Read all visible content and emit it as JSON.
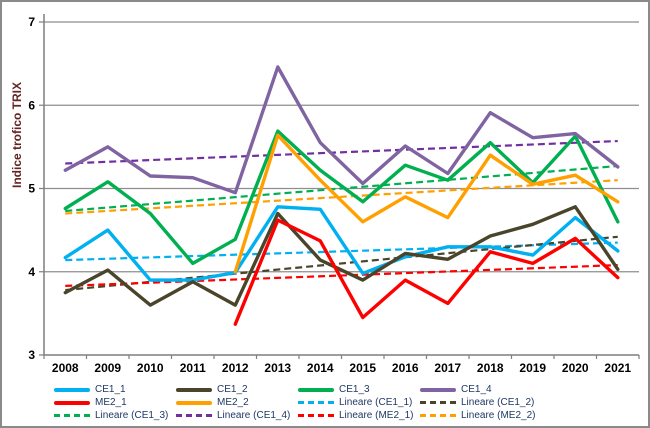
{
  "window": {
    "background": "#FFFFFF",
    "border_color": "#8a8a8a"
  },
  "axis_style": {
    "grid_color": "#8E8E8E",
    "axis_color": "#7F7F7F",
    "tick_label_color": "#000000",
    "y_title_color": "#632423",
    "legend_text_color": "#1F3864"
  },
  "chart_data": {
    "type": "line",
    "title": "",
    "xlabel": "",
    "ylabel": "Indice trofico TRIX",
    "ylim": [
      3,
      7
    ],
    "yticks": [
      3,
      4,
      5,
      6,
      7
    ],
    "grid": "horizontal",
    "legend_position": "bottom",
    "categories": [
      "2008",
      "2009",
      "2010",
      "2011",
      "2012",
      "2013",
      "2014",
      "2015",
      "2016",
      "2017",
      "2018",
      "2019",
      "2020",
      "2021"
    ],
    "series": [
      {
        "name": "CE1_1",
        "color": "#00B0F0",
        "style": "solid",
        "values": [
          4.17,
          4.5,
          3.9,
          3.9,
          3.99,
          4.78,
          4.75,
          3.98,
          4.18,
          4.3,
          4.3,
          4.2,
          4.65,
          4.25
        ]
      },
      {
        "name": "CE1_2",
        "color": "#4A452A",
        "style": "solid",
        "values": [
          3.75,
          4.02,
          3.6,
          3.88,
          3.6,
          4.7,
          4.14,
          3.9,
          4.22,
          4.15,
          4.43,
          4.57,
          4.78,
          4.03
        ]
      },
      {
        "name": "CE1_3",
        "color": "#00B050",
        "style": "solid",
        "values": [
          4.76,
          5.08,
          4.7,
          4.1,
          4.39,
          5.69,
          5.22,
          4.84,
          5.28,
          5.1,
          5.55,
          5.07,
          5.63,
          4.6
        ]
      },
      {
        "name": "CE1_4",
        "color": "#8064A2",
        "style": "solid",
        "values": [
          5.22,
          5.5,
          5.15,
          5.13,
          4.95,
          6.46,
          5.55,
          5.06,
          5.51,
          5.18,
          5.91,
          5.61,
          5.66,
          5.26
        ]
      },
      {
        "name": "ME2_1",
        "color": "#FF0000",
        "style": "solid",
        "values": [
          null,
          null,
          null,
          null,
          3.37,
          4.62,
          4.37,
          3.45,
          3.9,
          3.62,
          4.24,
          4.1,
          4.4,
          3.93
        ]
      },
      {
        "name": "ME2_2",
        "color": "#FFA000",
        "style": "solid",
        "values": [
          null,
          null,
          null,
          null,
          4.0,
          5.64,
          5.1,
          4.6,
          4.9,
          4.65,
          5.4,
          5.05,
          5.16,
          4.84
        ]
      }
    ],
    "trendlines": [
      {
        "name": "Lineare (CE1_1)",
        "color": "#00B0F0",
        "start": 4.14,
        "end": 4.35
      },
      {
        "name": "Lineare (CE1_2)",
        "color": "#4A452A",
        "start": 3.78,
        "end": 4.42
      },
      {
        "name": "Lineare (CE1_3)",
        "color": "#00B050",
        "start": 4.73,
        "end": 5.27
      },
      {
        "name": "Lineare (CE1_4)",
        "color": "#7030A0",
        "start": 5.3,
        "end": 5.57
      },
      {
        "name": "Lineare (ME2_1)",
        "color": "#FF0000",
        "start": 3.83,
        "end": 4.08
      },
      {
        "name": "Lineare (ME2_2)",
        "color": "#FFA000",
        "start": 4.7,
        "end": 5.1
      }
    ]
  },
  "legend": {
    "items": [
      {
        "label": "CE1_1",
        "color": "#00B0F0",
        "dash": false
      },
      {
        "label": "CE1_2",
        "color": "#4A452A",
        "dash": false
      },
      {
        "label": "CE1_3",
        "color": "#00B050",
        "dash": false
      },
      {
        "label": "CE1_4",
        "color": "#8064A2",
        "dash": false
      },
      {
        "label": "ME2_1",
        "color": "#FF0000",
        "dash": false
      },
      {
        "label": "ME2_2",
        "color": "#FFA000",
        "dash": false
      },
      {
        "label": "Lineare (CE1_1)",
        "color": "#00B0F0",
        "dash": true
      },
      {
        "label": "Lineare (CE1_2)",
        "color": "#4A452A",
        "dash": true
      },
      {
        "label": "Lineare (CE1_3)",
        "color": "#00B050",
        "dash": true
      },
      {
        "label": "Lineare (CE1_4)",
        "color": "#7030A0",
        "dash": true
      },
      {
        "label": "Lineare (ME2_1)",
        "color": "#FF0000",
        "dash": true
      },
      {
        "label": "Lineare (ME2_2)",
        "color": "#FFA000",
        "dash": true
      }
    ]
  }
}
